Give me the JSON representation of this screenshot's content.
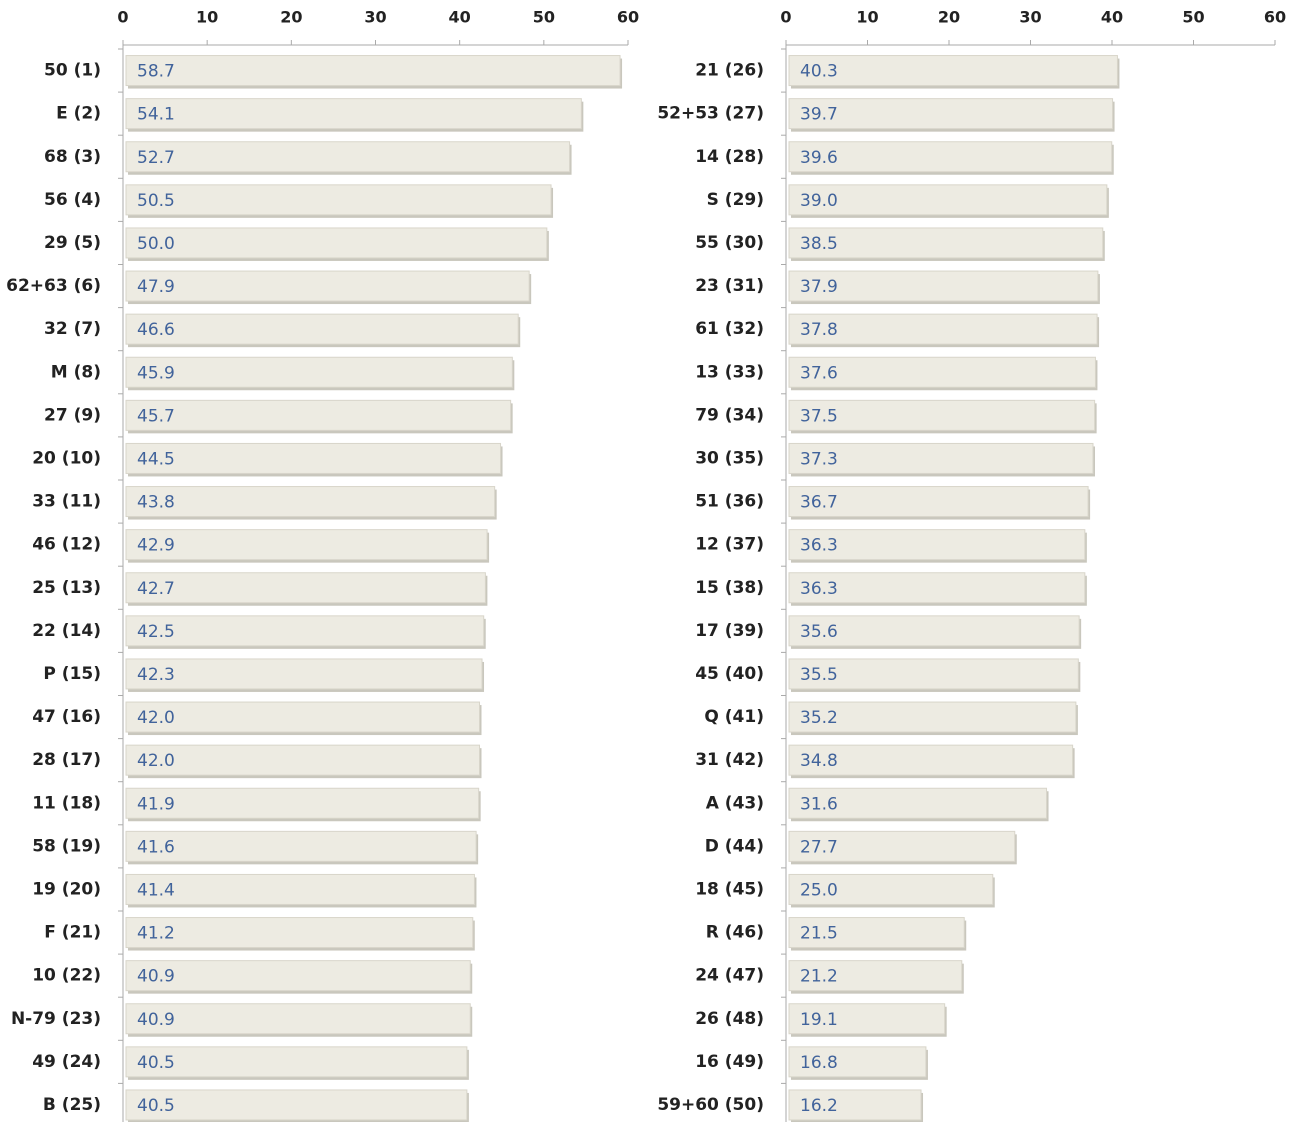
{
  "chart_data": [
    {
      "type": "barh",
      "categories": [
        "50 (1)",
        "E (2)",
        "68 (3)",
        "56 (4)",
        "29 (5)",
        "62+63 (6)",
        "32 (7)",
        "M (8)",
        "27 (9)",
        "20 (10)",
        "33 (11)",
        "46 (12)",
        "25 (13)",
        "22 (14)",
        "P (15)",
        "47 (16)",
        "28 (17)",
        "11 (18)",
        "58 (19)",
        "19 (20)",
        "F (21)",
        "10 (22)",
        "N-79 (23)",
        "49 (24)",
        "B (25)"
      ],
      "values": [
        58.7,
        54.1,
        52.7,
        50.5,
        50.0,
        47.9,
        46.6,
        45.9,
        45.7,
        44.5,
        43.8,
        42.9,
        42.7,
        42.5,
        42.3,
        42.0,
        42.0,
        41.9,
        41.6,
        41.4,
        41.2,
        40.9,
        40.9,
        40.5,
        40.5
      ],
      "value_labels": [
        "58.7",
        "54.1",
        "52.7",
        "50.5",
        "50.0",
        "47.9",
        "46.6",
        "45.9",
        "45.7",
        "44.5",
        "43.8",
        "42.9",
        "42.7",
        "42.5",
        "42.3",
        "42.0",
        "42.0",
        "41.9",
        "41.6",
        "41.4",
        "41.2",
        "40.9",
        "40.9",
        "40.5",
        "40.5"
      ],
      "color": "#edebe2",
      "xlim": [
        0,
        60
      ],
      "xticks": [
        0,
        10,
        20,
        30,
        40,
        50,
        60
      ]
    },
    {
      "type": "barh",
      "categories": [
        "21 (26)",
        "52+53 (27)",
        "14 (28)",
        "S (29)",
        "55 (30)",
        "23 (31)",
        "61 (32)",
        "13 (33)",
        "79 (34)",
        "30 (35)",
        "51 (36)",
        "12 (37)",
        "15 (38)",
        "17 (39)",
        "45 (40)",
        "Q (41)",
        "31 (42)",
        "A (43)",
        "D (44)",
        "18 (45)",
        "R (46)",
        "24 (47)",
        "26 (48)",
        "16 (49)",
        "59+60 (50)"
      ],
      "values": [
        40.3,
        39.7,
        39.6,
        39.0,
        38.5,
        37.9,
        37.8,
        37.6,
        37.5,
        37.3,
        36.7,
        36.3,
        36.3,
        35.6,
        35.5,
        35.2,
        34.8,
        31.6,
        27.7,
        25.0,
        21.5,
        21.2,
        19.1,
        16.8,
        16.2
      ],
      "value_labels": [
        "40.3",
        "39.7",
        "39.6",
        "39.0",
        "38.5",
        "37.9",
        "37.8",
        "37.6",
        "37.5",
        "37.3",
        "36.7",
        "36.3",
        "36.3",
        "35.6",
        "35.5",
        "35.2",
        "34.8",
        "31.6",
        "27.7",
        "25.0",
        "21.5",
        "21.2",
        "19.1",
        "16.8",
        "16.2"
      ],
      "color": "#edebe2",
      "xlim": [
        0,
        60
      ],
      "xticks": [
        0,
        10,
        20,
        30,
        40,
        50,
        60
      ]
    }
  ]
}
